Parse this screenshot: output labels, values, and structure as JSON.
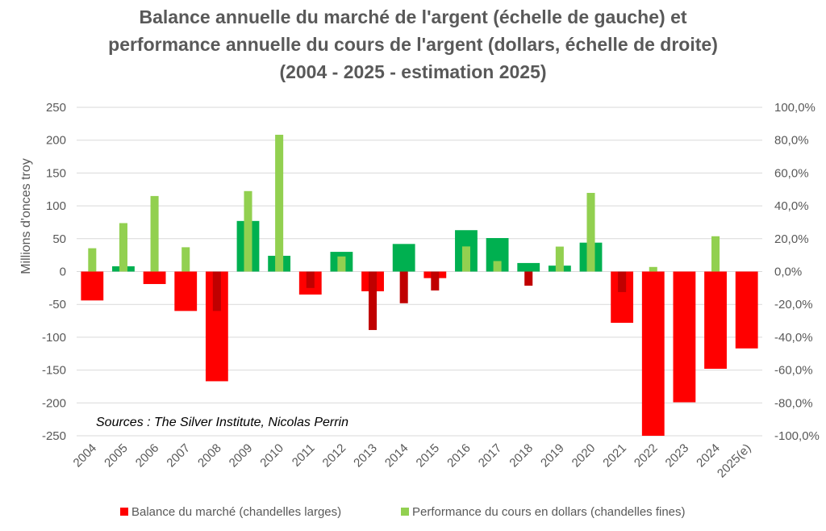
{
  "chart_data": {
    "type": "bar",
    "title_lines": [
      "Balance annuelle du marché de l'argent (échelle de gauche) et",
      "performance annuelle du cours de l'argent (dollars, échelle de droite)",
      "(2004 - 2025 - estimation 2025)"
    ],
    "ylabel": "Millions d'onces troy",
    "ylim": [
      -250,
      250
    ],
    "y_ticks": [
      "250",
      "200",
      "150",
      "100",
      "50",
      "0",
      "-50",
      "-100",
      "-150",
      "-200",
      "-250"
    ],
    "y2lim": [
      -100,
      100
    ],
    "y2_ticks": [
      "100,0%",
      "80,0%",
      "60,0%",
      "40,0%",
      "20,0%",
      "0,0%",
      "-20,0%",
      "-40,0%",
      "-60,0%",
      "-80,0%",
      "-100,0%"
    ],
    "grid": true,
    "legend_position": "bottom",
    "categories": [
      "2004",
      "2005",
      "2006",
      "2007",
      "2008",
      "2009",
      "2010",
      "2011",
      "2012",
      "2013",
      "2014",
      "2015",
      "2016",
      "2017",
      "2018",
      "2019",
      "2020",
      "2021",
      "2022",
      "2023",
      "2024",
      "2025(e)"
    ],
    "series": [
      {
        "name": "Balance du marché (chandelles larges)",
        "axis": "left",
        "values": [
          -44,
          8,
          -19,
          -60,
          -167,
          77,
          24,
          -35,
          30,
          -30,
          42,
          -10,
          63,
          51,
          13,
          9,
          44,
          -78,
          -250,
          -199,
          -148,
          -117
        ]
      },
      {
        "name": "Performance du cours en dollars (chandelles fines)",
        "axis": "right",
        "values": [
          14.2,
          29.5,
          46,
          14.8,
          -24,
          49,
          83.3,
          -10,
          9.2,
          -35.6,
          -19.3,
          -11.5,
          15.3,
          6.4,
          -8.6,
          15.2,
          47.9,
          -12.5,
          2.8,
          0,
          21.5,
          0
        ]
      }
    ],
    "annotation": "Sources : The Silver Institute, Nicolas Perrin",
    "colors": {
      "balance_positive": "#00b050",
      "balance_negative": "#ff0000",
      "perf_positive": "#92d050",
      "perf_negative": "#c00000",
      "perf_over_negative_balance": "#c00000",
      "grid": "#d9d9d9",
      "text": "#595959"
    }
  }
}
